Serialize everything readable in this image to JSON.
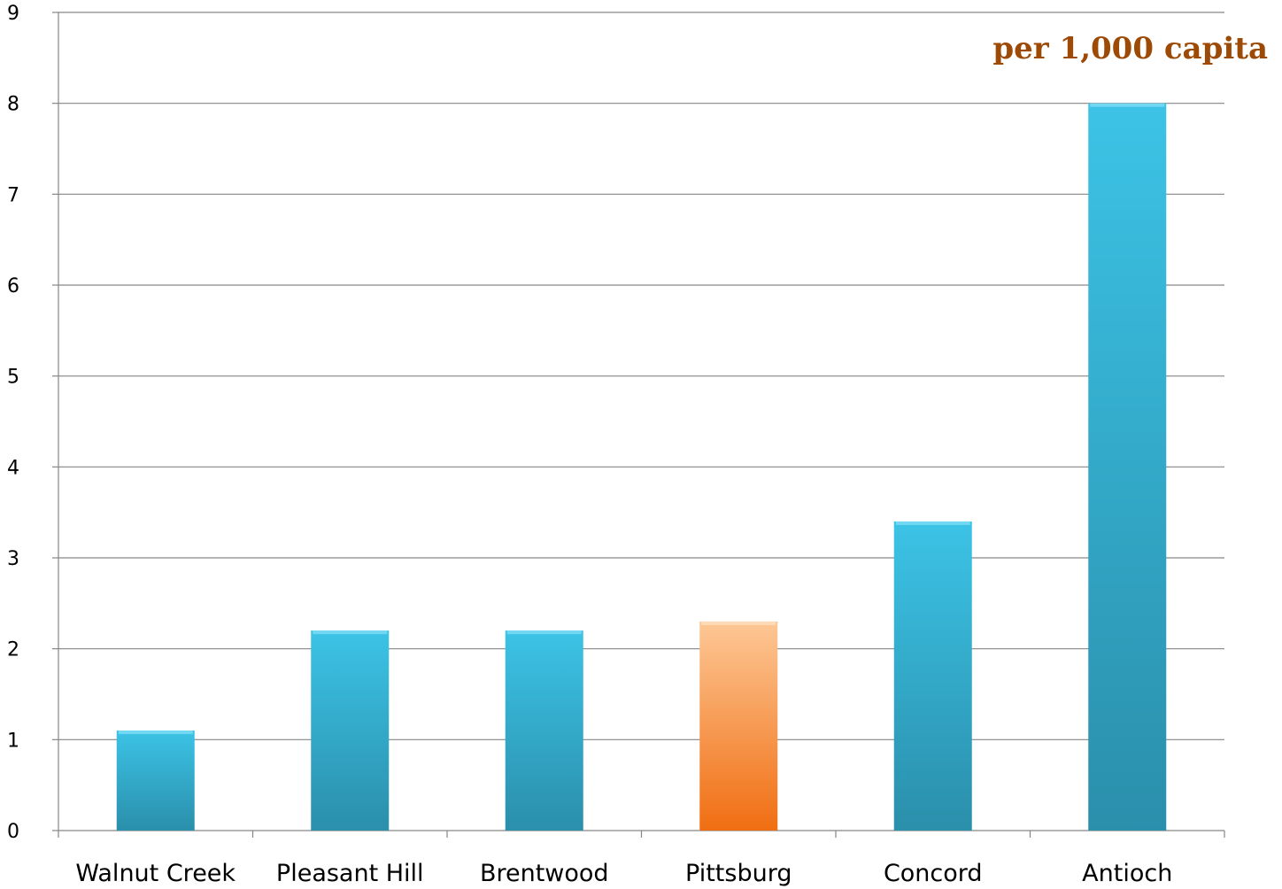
{
  "chart_data": {
    "type": "bar",
    "title": "",
    "xlabel": "",
    "ylabel": "",
    "annotation": "per 1,000 capita",
    "legend": "none",
    "grid": true,
    "categories": [
      "Walnut Creek",
      "Pleasant Hill",
      "Brentwood",
      "Pittsburg",
      "Concord",
      "Antioch"
    ],
    "values": [
      1.1,
      2.2,
      2.2,
      2.3,
      3.4,
      8.0
    ],
    "highlight_index": 3,
    "ylim": [
      0,
      9
    ],
    "yticks": [
      "0",
      "1",
      "2",
      "3",
      "4",
      "5",
      "6",
      "7",
      "8",
      "9"
    ],
    "colors": {
      "bar": "#35aed0",
      "highlight": "#f5883a",
      "grid": "#868686",
      "annotation": "#9c4a06"
    }
  }
}
